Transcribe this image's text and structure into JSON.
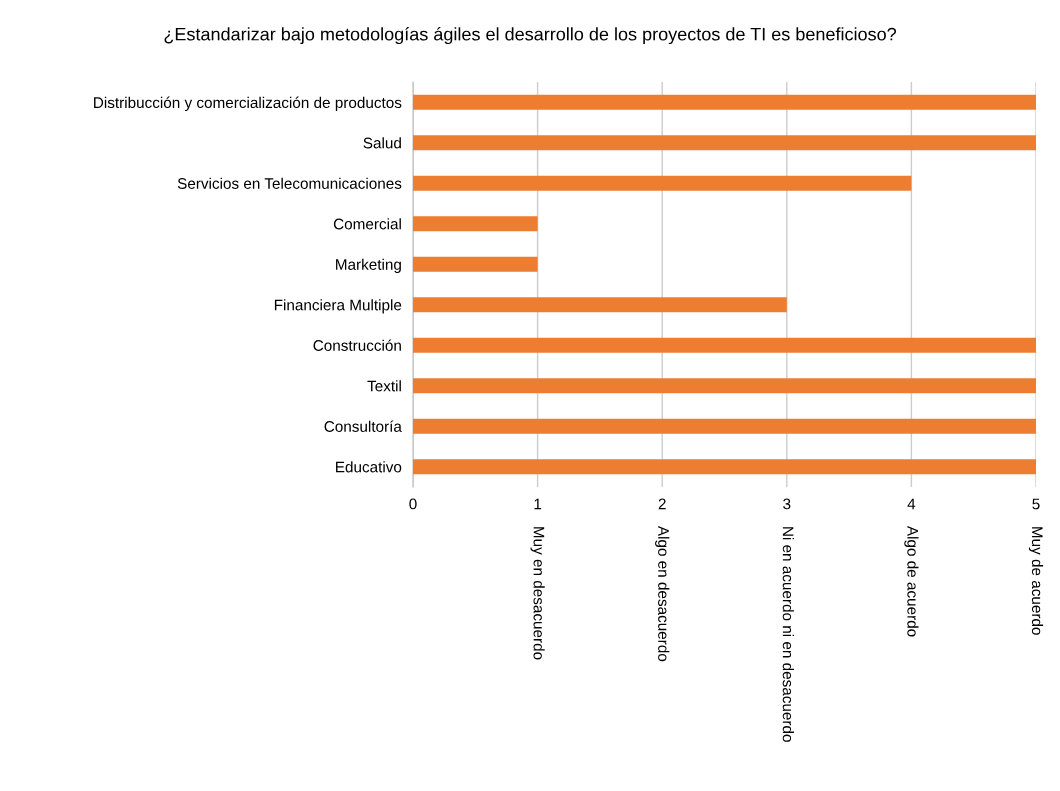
{
  "chart_data": {
    "type": "bar",
    "orientation": "horizontal",
    "title": "¿Estandarizar bajo metodologías ágiles el desarrollo de los proyectos de TI es beneficioso?",
    "categories": [
      "Distribucción y comercialización de productos",
      "Salud",
      "Servicios en Telecomunicaciones",
      "Comercial",
      "Marketing",
      "Financiera Multiple",
      "Construcción",
      "Textil",
      "Consultoría",
      "Educativo"
    ],
    "values": [
      5,
      5,
      4,
      1,
      1,
      3,
      5,
      5,
      5,
      5
    ],
    "color": "#ed7d31",
    "xlim": [
      0,
      5
    ],
    "xticks": [
      0,
      1,
      2,
      3,
      4,
      5
    ],
    "grid": "x",
    "annotations": [
      "Muy en desacuerdo",
      "Algo en desacuerdo",
      "Ni en acuerdo ni en desacuerdo",
      "Algo de acuerdo",
      "Muy de acuerdo"
    ]
  }
}
